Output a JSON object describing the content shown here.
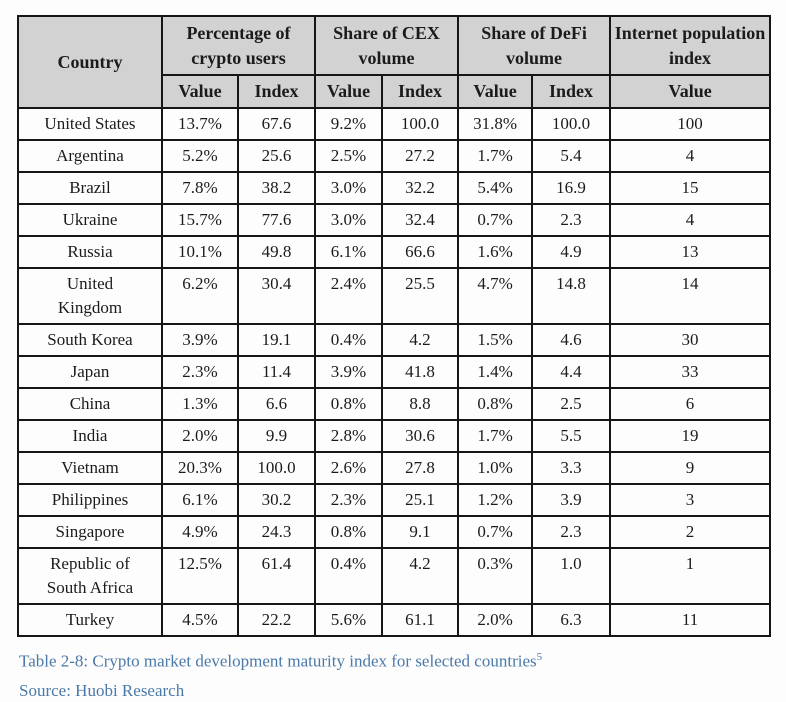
{
  "table": {
    "header": {
      "country_label": "Country",
      "groups": [
        {
          "label": "Percentage of crypto users"
        },
        {
          "label": "Share of CEX volume"
        },
        {
          "label": "Share of DeFi volume"
        },
        {
          "label": "Internet population index"
        }
      ],
      "subheaders": [
        "Value",
        "Index",
        "Value",
        "Index",
        "Value",
        "Index",
        "Value"
      ]
    },
    "rows": [
      {
        "country": "United States",
        "values": [
          "13.7%",
          "67.6",
          "9.2%",
          "100.0",
          "31.8%",
          "100.0",
          "100"
        ]
      },
      {
        "country": "Argentina",
        "values": [
          "5.2%",
          "25.6",
          "2.5%",
          "27.2",
          "1.7%",
          "5.4",
          "4"
        ]
      },
      {
        "country": "Brazil",
        "values": [
          "7.8%",
          "38.2",
          "3.0%",
          "32.2",
          "5.4%",
          "16.9",
          "15"
        ]
      },
      {
        "country": "Ukraine",
        "values": [
          "15.7%",
          "77.6",
          "3.0%",
          "32.4",
          "0.7%",
          "2.3",
          "4"
        ]
      },
      {
        "country": "Russia",
        "values": [
          "10.1%",
          "49.8",
          "6.1%",
          "66.6",
          "1.6%",
          "4.9",
          "13"
        ]
      },
      {
        "country": "United\nKingdom",
        "values": [
          "6.2%",
          "30.4",
          "2.4%",
          "25.5",
          "4.7%",
          "14.8",
          "14"
        ]
      },
      {
        "country": "South Korea",
        "values": [
          "3.9%",
          "19.1",
          "0.4%",
          "4.2",
          "1.5%",
          "4.6",
          "30"
        ]
      },
      {
        "country": "Japan",
        "values": [
          "2.3%",
          "11.4",
          "3.9%",
          "41.8",
          "1.4%",
          "4.4",
          "33"
        ]
      },
      {
        "country": "China",
        "values": [
          "1.3%",
          "6.6",
          "0.8%",
          "8.8",
          "0.8%",
          "2.5",
          "6"
        ]
      },
      {
        "country": "India",
        "values": [
          "2.0%",
          "9.9",
          "2.8%",
          "30.6",
          "1.7%",
          "5.5",
          "19"
        ]
      },
      {
        "country": "Vietnam",
        "values": [
          "20.3%",
          "100.0",
          "2.6%",
          "27.8",
          "1.0%",
          "3.3",
          "9"
        ]
      },
      {
        "country": "Philippines",
        "values": [
          "6.1%",
          "30.2",
          "2.3%",
          "25.1",
          "1.2%",
          "3.9",
          "3"
        ]
      },
      {
        "country": "Singapore",
        "values": [
          "4.9%",
          "24.3",
          "0.8%",
          "9.1",
          "0.7%",
          "2.3",
          "2"
        ]
      },
      {
        "country": "Republic of\nSouth Africa",
        "values": [
          "12.5%",
          "61.4",
          "0.4%",
          "4.2",
          "0.3%",
          "1.0",
          "1"
        ]
      },
      {
        "country": "Turkey",
        "values": [
          "4.5%",
          "22.2",
          "5.6%",
          "61.1",
          "2.0%",
          "6.3",
          "11"
        ]
      }
    ]
  },
  "caption": {
    "text": "Table 2-8:  Crypto market development maturity index for selected countries",
    "superscript": "5"
  },
  "source": {
    "text": "Source: Huobi Research"
  },
  "colors": {
    "caption_blue": "#4a79a8",
    "header_gray": "#d2d2d2",
    "border_black": "#161616"
  }
}
